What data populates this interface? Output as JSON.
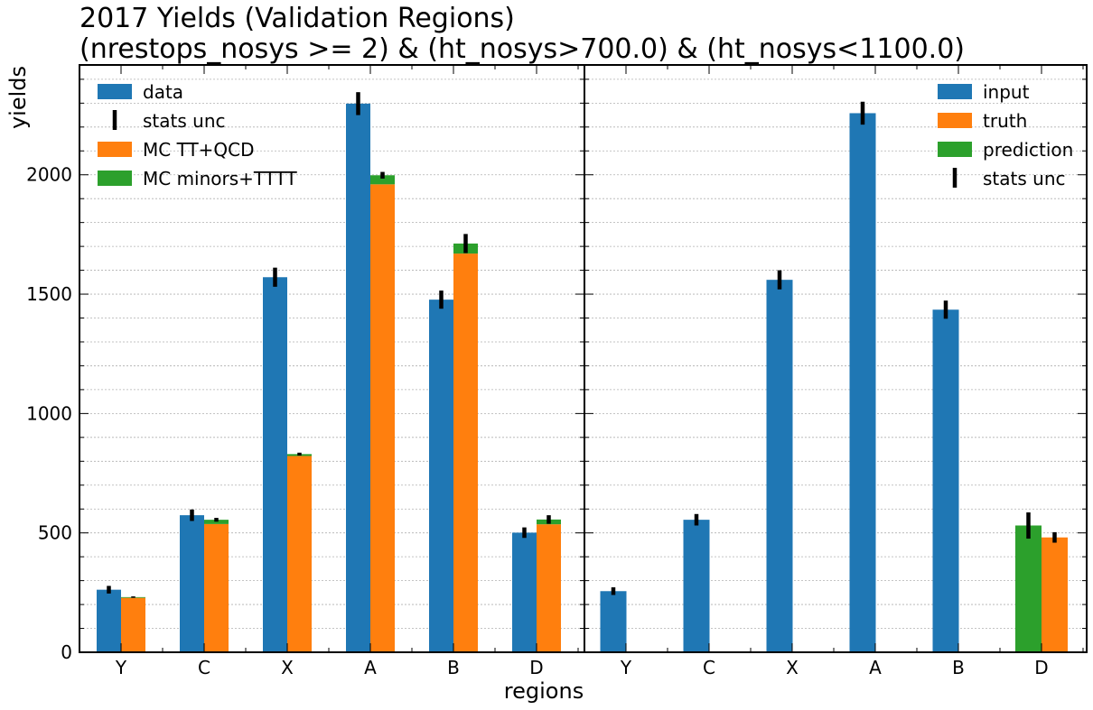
{
  "chart_data": {
    "type": "bar",
    "title": [
      "2017 Yields (Validation Regions)",
      "(nrestops_nosys >= 2) & (ht_nosys>700.0) & (ht_nosys<1100.0)"
    ],
    "xlabel": "regions",
    "ylabel": "yields",
    "ylim": [
      0,
      2460
    ],
    "yticks": [
      0,
      500,
      1000,
      1500,
      2000
    ],
    "grid": true,
    "categories": [
      "Y",
      "C",
      "X",
      "A",
      "B",
      "D"
    ],
    "colors": {
      "data": "#1f77b4",
      "mc_main": "#ff7f0e",
      "mc_minor": "#2ca02c",
      "err": "#000000"
    },
    "panels": [
      {
        "legend_position": "top-left",
        "legend": [
          "data",
          "stats unc",
          "MC TT+QCD",
          "MC minors+TTTT"
        ],
        "series": [
          {
            "name": "data",
            "values": [
              262,
              574,
              1571,
              2298,
              1477,
              501
            ],
            "err": [
              16,
              24,
              40,
              48,
              38,
              22
            ]
          },
          {
            "name": "MC TT+QCD",
            "values": [
              228,
              537,
              822,
              1960,
              1670,
              536
            ]
          },
          {
            "name": "MC minors+TTTT",
            "values": [
              3,
              18,
              8,
              38,
              42,
              20
            ],
            "stack_err": [
              3,
              8,
              6,
              14,
              40,
              18
            ]
          }
        ]
      },
      {
        "legend_position": "top-right",
        "legend": [
          "input",
          "truth",
          "prediction",
          "stats unc"
        ],
        "series": [
          {
            "name": "input",
            "values": [
              256,
              555,
              1560,
              2258,
              1435,
              null
            ],
            "err": [
              16,
              24,
              40,
              48,
              38,
              null
            ]
          },
          {
            "name": "prediction",
            "values": [
              null,
              null,
              null,
              null,
              null,
              531
            ],
            "err": [
              null,
              null,
              null,
              null,
              null,
              55
            ]
          },
          {
            "name": "truth",
            "values": [
              null,
              null,
              null,
              null,
              null,
              481
            ],
            "err": [
              null,
              null,
              null,
              null,
              null,
              22
            ]
          }
        ]
      }
    ]
  }
}
